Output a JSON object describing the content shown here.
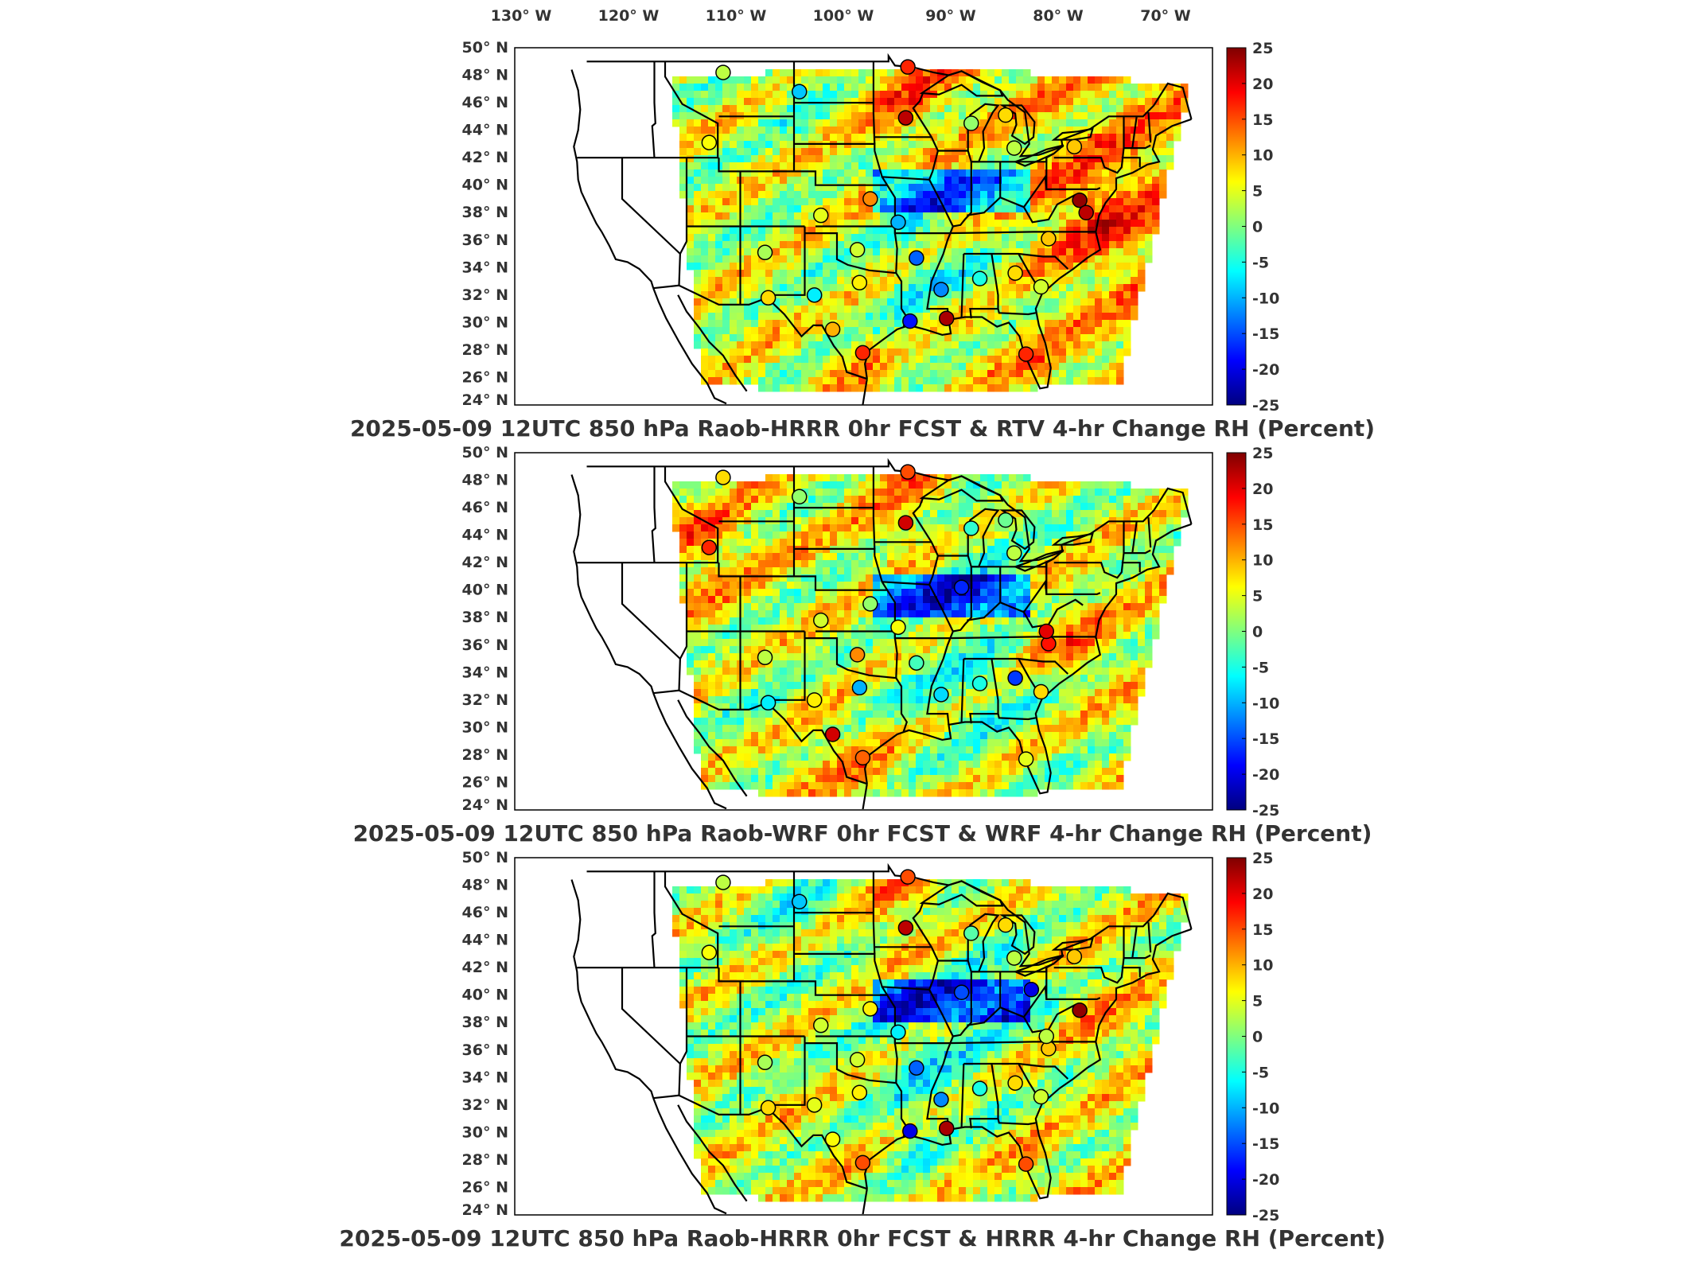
{
  "figure": {
    "top_longitude_labels": [
      "130° W",
      "120° W",
      "110° W",
      "100° W",
      "90° W",
      "80° W",
      "70° W"
    ],
    "latitude_labels": [
      "50° N",
      "48° N",
      "46° N",
      "44° N",
      "42° N",
      "40° N",
      "38° N",
      "36° N",
      "34° N",
      "32° N",
      "30° N",
      "28° N",
      "26° N",
      "24° N"
    ],
    "colorbar": {
      "ticks": [
        "25",
        "20",
        "15",
        "10",
        "5",
        "0",
        "-5",
        "-10",
        "-15",
        "-20",
        "-25"
      ],
      "range": [
        -25,
        25
      ],
      "colormap": "jet",
      "colors": [
        "#00007f",
        "#0000ff",
        "#007fff",
        "#00ffff",
        "#7fff7f",
        "#ffff00",
        "#ff7f00",
        "#ff0000",
        "#7f0000"
      ]
    }
  },
  "panels": [
    {
      "title": "2025-05-09 12UTC 850 hPa Raob-HRRR 0hr FCST & RTV 4-hr Change RH (Percent)",
      "stations": [
        {
          "lon": -110.6,
          "lat": 48.2,
          "value": 3
        },
        {
          "lon": -103.5,
          "lat": 46.8,
          "value": -9
        },
        {
          "lon": -93.4,
          "lat": 48.6,
          "value": 17
        },
        {
          "lon": -93.6,
          "lat": 44.9,
          "value": 22
        },
        {
          "lon": -87.5,
          "lat": 44.5,
          "value": 1
        },
        {
          "lon": -84.3,
          "lat": 45.1,
          "value": 8
        },
        {
          "lon": -111.9,
          "lat": 43.1,
          "value": 6
        },
        {
          "lon": -83.5,
          "lat": 42.7,
          "value": 3
        },
        {
          "lon": -77.9,
          "lat": 42.8,
          "value": 9
        },
        {
          "lon": -101.5,
          "lat": 37.8,
          "value": 5
        },
        {
          "lon": -96.9,
          "lat": 39.0,
          "value": 12
        },
        {
          "lon": -94.3,
          "lat": 37.3,
          "value": -10
        },
        {
          "lon": -77.4,
          "lat": 38.9,
          "value": 24
        },
        {
          "lon": -76.8,
          "lat": 38.0,
          "value": 22
        },
        {
          "lon": -80.3,
          "lat": 36.1,
          "value": 9
        },
        {
          "lon": -106.7,
          "lat": 35.1,
          "value": 2
        },
        {
          "lon": -98.1,
          "lat": 35.3,
          "value": 4
        },
        {
          "lon": -92.6,
          "lat": 34.7,
          "value": -14
        },
        {
          "lon": -97.9,
          "lat": 32.9,
          "value": 7
        },
        {
          "lon": -102.1,
          "lat": 32.0,
          "value": -7
        },
        {
          "lon": -106.4,
          "lat": 31.8,
          "value": 8
        },
        {
          "lon": -90.3,
          "lat": 32.4,
          "value": -12
        },
        {
          "lon": -86.7,
          "lat": 33.2,
          "value": -5
        },
        {
          "lon": -83.4,
          "lat": 33.6,
          "value": 8
        },
        {
          "lon": -81.0,
          "lat": 32.6,
          "value": 4
        },
        {
          "lon": -93.2,
          "lat": 30.1,
          "value": -18
        },
        {
          "lon": -89.8,
          "lat": 30.3,
          "value": 23
        },
        {
          "lon": -100.4,
          "lat": 29.5,
          "value": 10
        },
        {
          "lon": -97.6,
          "lat": 27.8,
          "value": 17
        },
        {
          "lon": -82.4,
          "lat": 27.7,
          "value": 17
        }
      ]
    },
    {
      "title": "2025-05-09 12UTC 850 hPa Raob-WRF 0hr FCST & WRF 4-hr Change RH (Percent)",
      "stations": [
        {
          "lon": -110.6,
          "lat": 48.2,
          "value": 8
        },
        {
          "lon": -103.5,
          "lat": 46.8,
          "value": 1
        },
        {
          "lon": -93.4,
          "lat": 48.6,
          "value": 15
        },
        {
          "lon": -93.6,
          "lat": 44.9,
          "value": 21
        },
        {
          "lon": -87.5,
          "lat": 44.5,
          "value": -4
        },
        {
          "lon": -84.3,
          "lat": 45.1,
          "value": -1
        },
        {
          "lon": -111.9,
          "lat": 43.1,
          "value": 17
        },
        {
          "lon": -83.5,
          "lat": 42.7,
          "value": 3
        },
        {
          "lon": -101.5,
          "lat": 37.8,
          "value": 4
        },
        {
          "lon": -96.9,
          "lat": 39.0,
          "value": 1
        },
        {
          "lon": -94.3,
          "lat": 37.3,
          "value": 6
        },
        {
          "lon": -88.4,
          "lat": 40.2,
          "value": -17
        },
        {
          "lon": -80.3,
          "lat": 36.1,
          "value": 18
        },
        {
          "lon": -80.5,
          "lat": 37.0,
          "value": 20
        },
        {
          "lon": -106.7,
          "lat": 35.1,
          "value": 3
        },
        {
          "lon": -98.1,
          "lat": 35.3,
          "value": 12
        },
        {
          "lon": -92.6,
          "lat": 34.7,
          "value": -3
        },
        {
          "lon": -97.9,
          "lat": 32.9,
          "value": -10
        },
        {
          "lon": -102.1,
          "lat": 32.0,
          "value": 7
        },
        {
          "lon": -106.4,
          "lat": 31.8,
          "value": -7
        },
        {
          "lon": -90.3,
          "lat": 32.4,
          "value": -8
        },
        {
          "lon": -86.7,
          "lat": 33.2,
          "value": -5
        },
        {
          "lon": -83.4,
          "lat": 33.6,
          "value": -16
        },
        {
          "lon": -81.0,
          "lat": 32.6,
          "value": 8
        },
        {
          "lon": -100.4,
          "lat": 29.5,
          "value": 21
        },
        {
          "lon": -97.6,
          "lat": 27.8,
          "value": 14
        },
        {
          "lon": -82.4,
          "lat": 27.7,
          "value": 5
        }
      ]
    },
    {
      "title": "2025-05-09 12UTC 850 hPa Raob-HRRR 0hr FCST & HRRR 4-hr Change RH (Percent)",
      "stations": [
        {
          "lon": -110.6,
          "lat": 48.2,
          "value": 3
        },
        {
          "lon": -103.5,
          "lat": 46.8,
          "value": -9
        },
        {
          "lon": -93.4,
          "lat": 48.6,
          "value": 15
        },
        {
          "lon": -93.6,
          "lat": 44.9,
          "value": 22
        },
        {
          "lon": -87.5,
          "lat": 44.5,
          "value": -2
        },
        {
          "lon": -84.3,
          "lat": 45.1,
          "value": 8
        },
        {
          "lon": -111.9,
          "lat": 43.1,
          "value": 6
        },
        {
          "lon": -83.5,
          "lat": 42.7,
          "value": 3
        },
        {
          "lon": -77.9,
          "lat": 42.8,
          "value": 9
        },
        {
          "lon": -101.5,
          "lat": 37.8,
          "value": 4
        },
        {
          "lon": -96.9,
          "lat": 39.0,
          "value": 7
        },
        {
          "lon": -94.3,
          "lat": 37.3,
          "value": -7
        },
        {
          "lon": -88.4,
          "lat": 40.2,
          "value": -15
        },
        {
          "lon": -81.9,
          "lat": 40.4,
          "value": -20
        },
        {
          "lon": -77.4,
          "lat": 38.9,
          "value": 24
        },
        {
          "lon": -80.3,
          "lat": 36.1,
          "value": 9
        },
        {
          "lon": -80.5,
          "lat": 37.0,
          "value": 3
        },
        {
          "lon": -106.7,
          "lat": 35.1,
          "value": 2
        },
        {
          "lon": -98.1,
          "lat": 35.3,
          "value": 4
        },
        {
          "lon": -92.6,
          "lat": 34.7,
          "value": -14
        },
        {
          "lon": -97.9,
          "lat": 32.9,
          "value": 7
        },
        {
          "lon": -102.1,
          "lat": 32.0,
          "value": 5
        },
        {
          "lon": -106.4,
          "lat": 31.8,
          "value": 8
        },
        {
          "lon": -90.3,
          "lat": 32.4,
          "value": -12
        },
        {
          "lon": -86.7,
          "lat": 33.2,
          "value": -5
        },
        {
          "lon": -83.4,
          "lat": 33.6,
          "value": 8
        },
        {
          "lon": -81.0,
          "lat": 32.6,
          "value": 4
        },
        {
          "lon": -93.2,
          "lat": 30.1,
          "value": -20
        },
        {
          "lon": -89.8,
          "lat": 30.3,
          "value": 23
        },
        {
          "lon": -100.4,
          "lat": 29.5,
          "value": 6
        },
        {
          "lon": -97.6,
          "lat": 27.8,
          "value": 15
        },
        {
          "lon": -82.4,
          "lat": 27.7,
          "value": 15
        }
      ]
    }
  ]
}
